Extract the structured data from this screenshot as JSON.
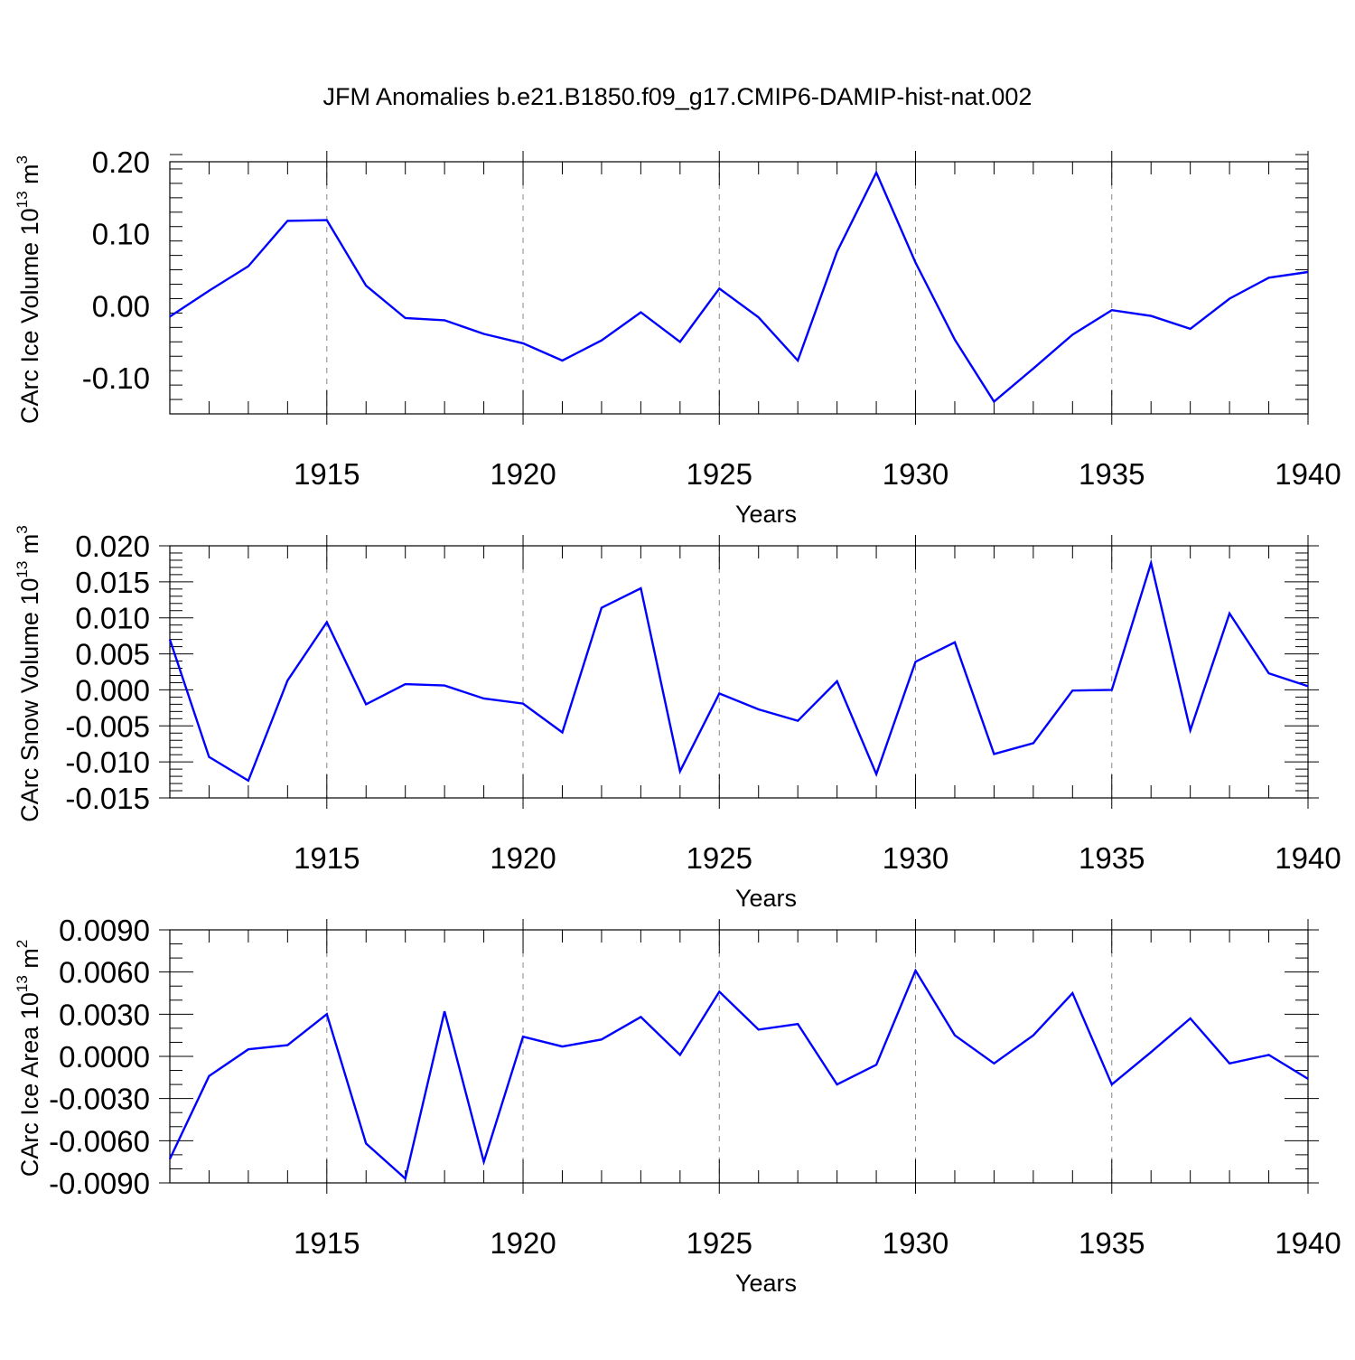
{
  "chart_data": {
    "title": "JFM Anomalies b.e21.B1850.f09_g17.CMIP6-DAMIP-hist-nat.002",
    "panels": [
      {
        "type": "line",
        "ylabel": "CArc Ice Volume 10",
        "ylabel_exp": "13",
        "ylabel_unit": " m",
        "ylabel_unit_exp": "3",
        "xlabel": "Years",
        "xlim": [
          1911,
          1940
        ],
        "ylim": [
          -0.15,
          0.2
        ],
        "yticks": [
          -0.1,
          0.0,
          0.1,
          0.2
        ],
        "ytick_labels": [
          "-0.10",
          "0.00",
          "0.10",
          "0.20"
        ],
        "yminor_step": 0.02,
        "xticks": [
          1915,
          1920,
          1925,
          1930,
          1935,
          1940
        ],
        "xtick_labels": [
          "1915",
          "1920",
          "1925",
          "1930",
          "1935",
          "1940"
        ],
        "grid_x": true,
        "color": "#0000ff",
        "x": [
          1911,
          1912,
          1913,
          1914,
          1915,
          1916,
          1917,
          1918,
          1919,
          1920,
          1921,
          1922,
          1923,
          1924,
          1925,
          1926,
          1927,
          1928,
          1929,
          1930,
          1931,
          1932,
          1933,
          1934,
          1935,
          1936,
          1937,
          1938,
          1939,
          1940
        ],
        "values": [
          -0.015,
          0.021,
          0.055,
          0.118,
          0.119,
          0.028,
          -0.017,
          -0.02,
          -0.039,
          -0.052,
          -0.076,
          -0.048,
          -0.009,
          -0.05,
          0.024,
          -0.016,
          -0.076,
          0.075,
          0.185,
          0.06,
          -0.047,
          -0.133,
          -0.087,
          -0.04,
          -0.006,
          -0.014,
          -0.032,
          0.01,
          0.039,
          0.047
        ]
      },
      {
        "type": "line",
        "ylabel": "CArc Snow Volume 10",
        "ylabel_exp": "13",
        "ylabel_unit": " m",
        "ylabel_unit_exp": "3",
        "xlabel": "Years",
        "xlim": [
          1911,
          1940
        ],
        "ylim": [
          -0.015,
          0.02
        ],
        "yticks": [
          -0.015,
          -0.01,
          -0.005,
          0.0,
          0.005,
          0.01,
          0.015,
          0.02
        ],
        "ytick_labels": [
          "-0.015",
          "-0.010",
          "-0.005",
          "0.000",
          "0.005",
          "0.010",
          "0.015",
          "0.020"
        ],
        "yminor_step": 0.001,
        "xticks": [
          1915,
          1920,
          1925,
          1930,
          1935,
          1940
        ],
        "xtick_labels": [
          "1915",
          "1920",
          "1925",
          "1930",
          "1935",
          "1940"
        ],
        "grid_x": true,
        "color": "#0000ff",
        "x": [
          1911,
          1912,
          1913,
          1914,
          1915,
          1916,
          1917,
          1918,
          1919,
          1920,
          1921,
          1922,
          1923,
          1924,
          1925,
          1926,
          1927,
          1928,
          1929,
          1930,
          1931,
          1932,
          1933,
          1934,
          1935,
          1936,
          1937,
          1938,
          1939,
          1940
        ],
        "values": [
          0.007,
          -0.0093,
          -0.0126,
          0.0013,
          0.0094,
          -0.002,
          0.0008,
          0.0006,
          -0.0012,
          -0.0019,
          -0.0059,
          0.0114,
          0.0141,
          -0.0113,
          -0.0005,
          -0.0027,
          -0.0043,
          0.0012,
          -0.0117,
          0.0039,
          0.0066,
          -0.0089,
          -0.0074,
          -0.0001,
          0.0,
          0.0176,
          -0.0056,
          0.0106,
          0.0023,
          0.0005
        ]
      },
      {
        "type": "line",
        "ylabel": "CArc Ice Area 10",
        "ylabel_exp": "13",
        "ylabel_unit": " m",
        "ylabel_unit_exp": "2",
        "xlabel": "Years",
        "xlim": [
          1911,
          1940
        ],
        "ylim": [
          -0.009,
          0.009
        ],
        "yticks": [
          -0.009,
          -0.006,
          -0.003,
          0.0,
          0.003,
          0.006,
          0.009
        ],
        "ytick_labels": [
          "-0.0090",
          "-0.0060",
          "-0.0030",
          "0.0000",
          "0.0030",
          "0.0060",
          "0.0090"
        ],
        "yminor_step": 0.001,
        "xticks": [
          1915,
          1920,
          1925,
          1930,
          1935,
          1940
        ],
        "xtick_labels": [
          "1915",
          "1920",
          "1925",
          "1930",
          "1935",
          "1940"
        ],
        "grid_x": true,
        "color": "#0000ff",
        "x": [
          1911,
          1912,
          1913,
          1914,
          1915,
          1916,
          1917,
          1918,
          1919,
          1920,
          1921,
          1922,
          1923,
          1924,
          1925,
          1926,
          1927,
          1928,
          1929,
          1930,
          1931,
          1932,
          1933,
          1934,
          1935,
          1936,
          1937,
          1938,
          1939,
          1940
        ],
        "values": [
          -0.0073,
          -0.0014,
          0.0005,
          0.0008,
          0.003,
          -0.0062,
          -0.0087,
          0.0032,
          -0.0075,
          0.0014,
          0.0007,
          0.0012,
          0.0028,
          0.0001,
          0.0046,
          0.0019,
          0.0023,
          -0.002,
          -0.0006,
          0.0061,
          0.0015,
          -0.0005,
          0.0015,
          0.0045,
          -0.002,
          0.0003,
          0.0027,
          -0.0005,
          0.0001,
          -0.0016
        ]
      }
    ]
  }
}
